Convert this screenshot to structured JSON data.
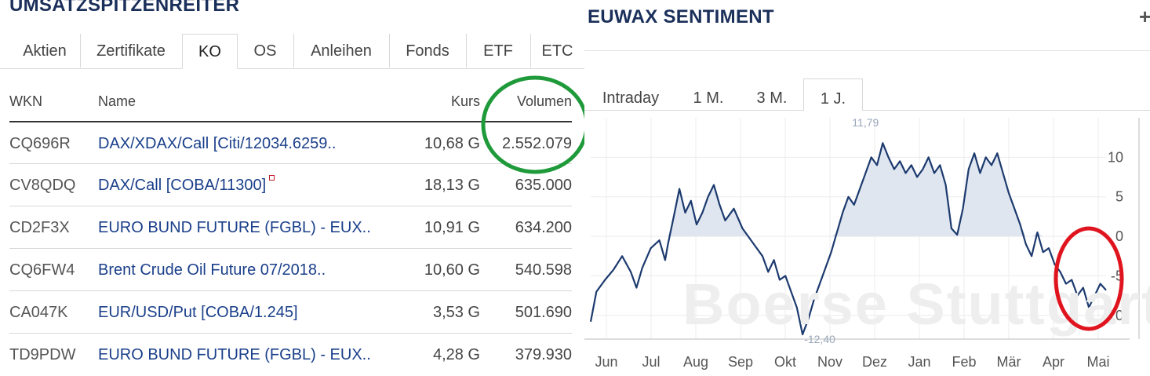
{
  "left": {
    "title": "UMSATZSPITZENREITER",
    "tabs": [
      "Aktien",
      "Zertifikate",
      "KO",
      "OS",
      "Anleihen",
      "Fonds",
      "ETF",
      "ETC"
    ],
    "active_tab": "KO",
    "columns": {
      "wkn": "WKN",
      "name": "Name",
      "kurs": "Kurs",
      "volumen": "Volumen"
    },
    "rows": [
      {
        "wkn": "CQ696R",
        "name": "DAX/XDAX/Call [Citi/12034.6259..",
        "kurs": "10,68 G",
        "volumen": "2.552.079",
        "marker": false
      },
      {
        "wkn": "CV8QDQ",
        "name": "DAX/Call [COBA/11300]",
        "kurs": "18,13 G",
        "volumen": "635.000",
        "marker": true
      },
      {
        "wkn": "CD2F3X",
        "name": "EURO BUND FUTURE (FGBL) - EUX..",
        "kurs": "10,91 G",
        "volumen": "634.200",
        "marker": false
      },
      {
        "wkn": "CQ6FW4",
        "name": "Brent Crude Oil Future 07/2018..",
        "kurs": "10,60 G",
        "volumen": "540.598",
        "marker": false
      },
      {
        "wkn": "CA047K",
        "name": "EUR/USD/Put [COBA/1.245]",
        "kurs": "3,53 G",
        "volumen": "501.690",
        "marker": false
      },
      {
        "wkn": "TD9PDW",
        "name": "EURO BUND FUTURE (FGBL) - EUX..",
        "kurs": "4,28 G",
        "volumen": "379.930",
        "marker": false
      }
    ]
  },
  "right": {
    "title": "EUWAX SENTIMENT",
    "plus_icon": "plus-icon",
    "ranges": [
      "Intraday",
      "1 M.",
      "3 M.",
      "1 J."
    ],
    "active_range": "1 J.",
    "watermark": "Boerse Stuttgart"
  },
  "annotations": {
    "green_circle": "#1f9a3a",
    "red_circle": "#e0141e"
  },
  "chart_data": {
    "type": "area",
    "title": "",
    "xlabel": "",
    "ylabel": "",
    "x_ticks": [
      "Jun",
      "Jul",
      "Aug",
      "Sep",
      "Okt",
      "Nov",
      "Dez",
      "Jan",
      "Feb",
      "Mär",
      "Apr",
      "Mai"
    ],
    "y_ticks": [
      10,
      5,
      0,
      -5,
      -10
    ],
    "ylim": [
      -13,
      15
    ],
    "max_label": "11,79",
    "min_label": "-12,40",
    "grid": true,
    "series": [
      {
        "color": "#1c3a6e",
        "fill": "#dfe6f0",
        "points": [
          [
            0.0,
            -10.8
          ],
          [
            0.02,
            -7.0
          ],
          [
            0.05,
            -5.5
          ],
          [
            0.08,
            -4.2
          ],
          [
            0.11,
            -2.5
          ],
          [
            0.14,
            -4.5
          ],
          [
            0.16,
            -6.5
          ],
          [
            0.18,
            -4.0
          ],
          [
            0.21,
            -1.5
          ],
          [
            0.24,
            -0.5
          ],
          [
            0.26,
            -3.0
          ],
          [
            0.27,
            -1.0
          ],
          [
            0.29,
            2.5
          ],
          [
            0.31,
            6.0
          ],
          [
            0.33,
            3.0
          ],
          [
            0.35,
            4.5
          ],
          [
            0.37,
            1.5
          ],
          [
            0.39,
            3.0
          ],
          [
            0.41,
            5.0
          ],
          [
            0.43,
            6.5
          ],
          [
            0.45,
            4.0
          ],
          [
            0.47,
            2.0
          ],
          [
            0.5,
            3.5
          ],
          [
            0.53,
            1.0
          ],
          [
            0.55,
            0.0
          ],
          [
            0.57,
            -1.0
          ],
          [
            0.6,
            -2.5
          ],
          [
            0.62,
            -4.5
          ],
          [
            0.64,
            -3.0
          ],
          [
            0.66,
            -5.5
          ],
          [
            0.68,
            -5.0
          ],
          [
            0.7,
            -7.0
          ],
          [
            0.72,
            -9.0
          ],
          [
            0.74,
            -12.4
          ],
          [
            0.76,
            -10.5
          ],
          [
            0.78,
            -8.0
          ],
          [
            0.8,
            -6.0
          ],
          [
            0.82,
            -4.0
          ],
          [
            0.84,
            -2.0
          ],
          [
            0.86,
            0.5
          ],
          [
            0.88,
            3.0
          ],
          [
            0.9,
            5.0
          ],
          [
            0.92,
            4.0
          ],
          [
            0.94,
            6.0
          ],
          [
            0.96,
            8.0
          ],
          [
            0.98,
            10.0
          ],
          [
            1.0,
            9.0
          ],
          [
            1.02,
            11.79
          ],
          [
            1.04,
            10.0
          ],
          [
            1.06,
            8.5
          ],
          [
            1.08,
            9.5
          ],
          [
            1.1,
            8.0
          ],
          [
            1.12,
            9.0
          ],
          [
            1.14,
            7.5
          ],
          [
            1.16,
            8.5
          ],
          [
            1.18,
            10.0
          ],
          [
            1.2,
            8.0
          ],
          [
            1.22,
            9.0
          ],
          [
            1.24,
            6.5
          ],
          [
            1.26,
            1.0
          ],
          [
            1.28,
            0.2
          ],
          [
            1.3,
            3.5
          ],
          [
            1.32,
            8.5
          ],
          [
            1.34,
            10.5
          ],
          [
            1.36,
            8.0
          ],
          [
            1.38,
            10.0
          ],
          [
            1.4,
            9.0
          ],
          [
            1.42,
            10.5
          ],
          [
            1.44,
            8.0
          ],
          [
            1.46,
            5.5
          ],
          [
            1.48,
            3.5
          ],
          [
            1.5,
            1.5
          ],
          [
            1.52,
            -1.0
          ],
          [
            1.54,
            -2.5
          ],
          [
            1.56,
            0.5
          ],
          [
            1.58,
            -2.0
          ],
          [
            1.6,
            -1.5
          ],
          [
            1.62,
            -3.5
          ],
          [
            1.64,
            -4.5
          ],
          [
            1.66,
            -6.0
          ],
          [
            1.68,
            -5.5
          ],
          [
            1.7,
            -7.5
          ],
          [
            1.72,
            -6.5
          ],
          [
            1.74,
            -9.0
          ],
          [
            1.76,
            -7.5
          ],
          [
            1.78,
            -6.0
          ],
          [
            1.8,
            -6.8
          ]
        ]
      }
    ]
  }
}
